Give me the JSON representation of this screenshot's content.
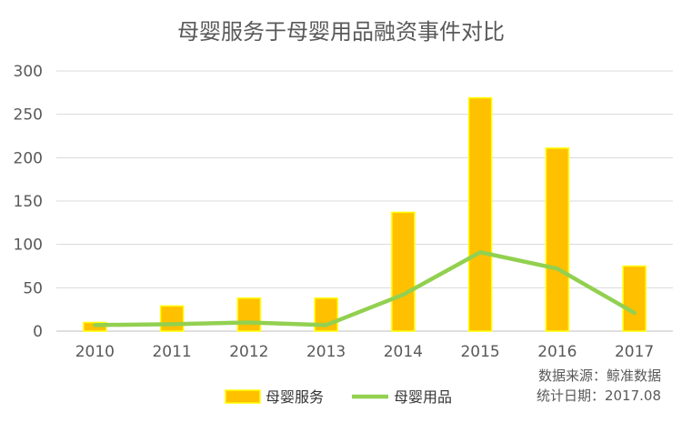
{
  "chart_data": {
    "type": "bar",
    "title": "母婴服务于母婴用品融资事件对比",
    "categories": [
      "2010",
      "2011",
      "2012",
      "2013",
      "2014",
      "2015",
      "2016",
      "2017"
    ],
    "series": [
      {
        "name": "母婴服务",
        "kind": "bar",
        "color": "#FFC000",
        "border": "#FFFF00",
        "values": [
          10,
          29,
          38,
          38,
          137,
          269,
          211,
          75
        ]
      },
      {
        "name": "母婴用品",
        "kind": "line",
        "color": "#92D050",
        "values": [
          7,
          8,
          10,
          7,
          42,
          91,
          72,
          21
        ]
      }
    ],
    "ylim": [
      0,
      300
    ],
    "yticks": [
      0,
      50,
      100,
      150,
      200,
      250,
      300
    ],
    "grid": true,
    "legend": "bottom"
  },
  "source": {
    "line1": "数据来源：鲸准数据",
    "line2": "统计日期：2017.08"
  }
}
